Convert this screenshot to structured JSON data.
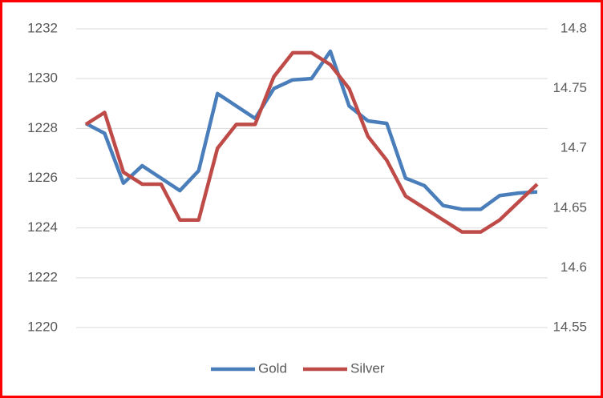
{
  "chart_data": {
    "type": "line",
    "series": [
      {
        "name": "Gold",
        "color": "#4a7ebb",
        "axis": "y",
        "values": [
          1228.2,
          1227.8,
          1225.8,
          1226.5,
          1226.0,
          1225.5,
          1226.3,
          1229.4,
          1228.9,
          1228.4,
          1229.6,
          1229.95,
          1230.0,
          1231.1,
          1228.9,
          1228.3,
          1228.2,
          1226.0,
          1225.7,
          1224.9,
          1224.75,
          1224.75,
          1225.3,
          1225.4,
          1225.45
        ]
      },
      {
        "name": "Silver",
        "color": "#be4b48",
        "axis": "y2",
        "values": [
          14.72,
          14.73,
          14.68,
          14.67,
          14.67,
          14.64,
          14.64,
          14.7,
          14.72,
          14.72,
          14.76,
          14.78,
          14.78,
          14.77,
          14.75,
          14.71,
          14.69,
          14.66,
          14.65,
          14.64,
          14.63,
          14.63,
          14.64,
          14.655,
          14.67
        ]
      }
    ],
    "ylim": [
      1220,
      1232
    ],
    "yticks": [
      1220,
      1222,
      1224,
      1226,
      1228,
      1230,
      1232
    ],
    "y2lim": [
      14.55,
      14.8
    ],
    "y2ticks": [
      14.55,
      14.6,
      14.65,
      14.7,
      14.75,
      14.8
    ],
    "grid": true,
    "legend": "bottom"
  }
}
